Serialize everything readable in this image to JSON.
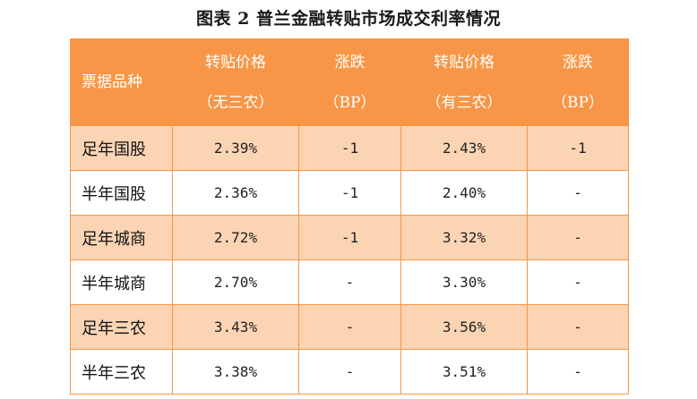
{
  "title": "图表 2  普兰金融转贴市场成交利率情况",
  "header": {
    "col0": "票据品种",
    "col1_line1": "转贴价格",
    "col1_line2": "（无三农）",
    "col2_line1": "涨跌",
    "col2_line2": "（BP）",
    "col3_line1": "转贴价格",
    "col3_line2": "（有三农）",
    "col4_line1": "涨跌",
    "col4_line2": "（BP）"
  },
  "rows": [
    {
      "name": "足年国股",
      "price_no": "2.39%",
      "chg_no": "-1",
      "price_yes": "2.43%",
      "chg_yes": "-1"
    },
    {
      "name": "半年国股",
      "price_no": "2.36%",
      "chg_no": "-1",
      "price_yes": "2.40%",
      "chg_yes": "-"
    },
    {
      "name": "足年城商",
      "price_no": "2.72%",
      "chg_no": "-1",
      "price_yes": "3.32%",
      "chg_yes": "-"
    },
    {
      "name": "半年城商",
      "price_no": "2.70%",
      "chg_no": "-",
      "price_yes": "3.30%",
      "chg_yes": "-"
    },
    {
      "name": "足年三农",
      "price_no": "3.43%",
      "chg_no": "-",
      "price_yes": "3.56%",
      "chg_yes": "-"
    },
    {
      "name": "半年三农",
      "price_no": "3.38%",
      "chg_no": "-",
      "price_yes": "3.51%",
      "chg_yes": "-"
    }
  ],
  "colors": {
    "header_bg": "#f79646",
    "band_bg": "#fbd4b4",
    "border": "#f79646"
  }
}
